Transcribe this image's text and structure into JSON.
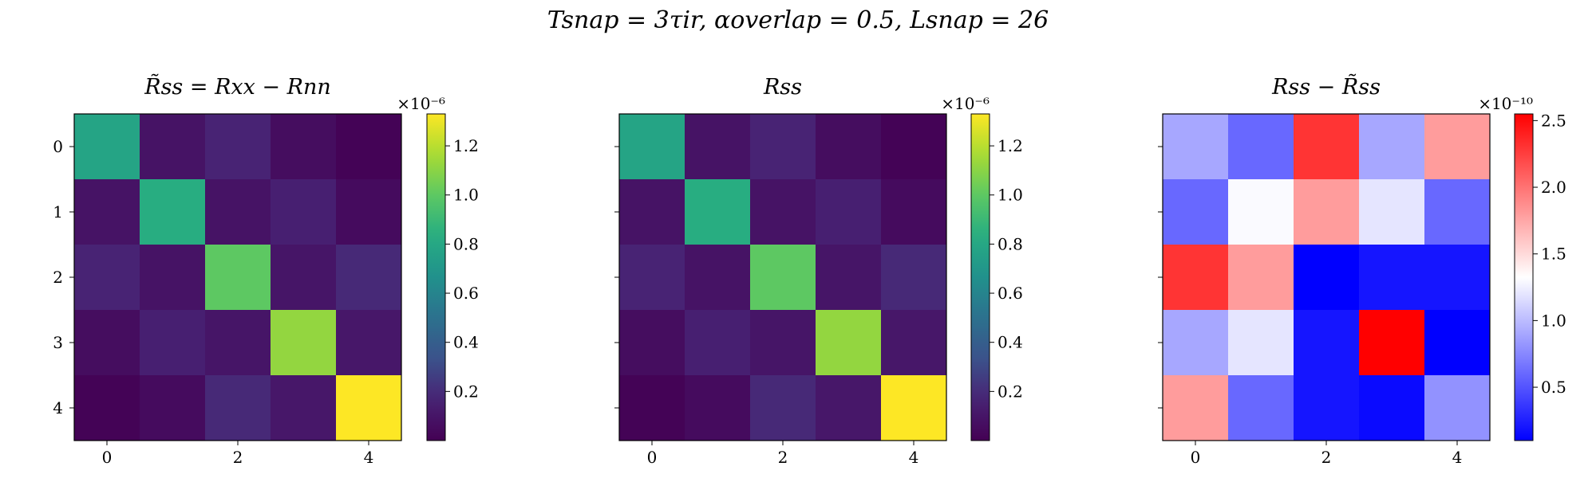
{
  "suptitle": "Tsnap = 3τir,   αoverlap = 0.5,   Lsnap = 26",
  "chart_data": [
    {
      "type": "heatmap",
      "title": "R̃ss = Rxx − Rnn",
      "rows": [
        "0",
        "1",
        "2",
        "3",
        "4"
      ],
      "cols": [
        "0",
        "1",
        "2",
        "3",
        "4"
      ],
      "xticks": [
        "0",
        "2",
        "4"
      ],
      "yticks": [
        "0",
        "1",
        "2",
        "3",
        "4"
      ],
      "colormap": "viridis",
      "multiplier": "×10⁻⁶",
      "vmin": 0.0,
      "vmax": 1.33,
      "colorbar_ticks": [
        "0.2",
        "0.4",
        "0.6",
        "0.8",
        "1.0",
        "1.2"
      ],
      "values": [
        [
          0.78,
          0.09,
          0.17,
          0.06,
          0.01
        ],
        [
          0.09,
          0.84,
          0.09,
          0.15,
          0.05
        ],
        [
          0.17,
          0.09,
          1.0,
          0.1,
          0.19
        ],
        [
          0.06,
          0.15,
          0.1,
          1.12,
          0.11
        ],
        [
          0.01,
          0.05,
          0.19,
          0.11,
          1.33
        ]
      ]
    },
    {
      "type": "heatmap",
      "title": "Rss",
      "rows": [
        "0",
        "1",
        "2",
        "3",
        "4"
      ],
      "cols": [
        "0",
        "1",
        "2",
        "3",
        "4"
      ],
      "xticks": [
        "0",
        "2",
        "4"
      ],
      "yticks": [],
      "colormap": "viridis",
      "multiplier": "×10⁻⁶",
      "vmin": 0.0,
      "vmax": 1.33,
      "colorbar_ticks": [
        "0.2",
        "0.4",
        "0.6",
        "0.8",
        "1.0",
        "1.2"
      ],
      "values": [
        [
          0.78,
          0.09,
          0.17,
          0.06,
          0.01
        ],
        [
          0.09,
          0.84,
          0.09,
          0.15,
          0.05
        ],
        [
          0.17,
          0.09,
          1.0,
          0.1,
          0.19
        ],
        [
          0.06,
          0.15,
          0.1,
          1.12,
          0.11
        ],
        [
          0.01,
          0.05,
          0.19,
          0.11,
          1.33
        ]
      ]
    },
    {
      "type": "heatmap",
      "title": "Rss − R̃ss",
      "rows": [
        "0",
        "1",
        "2",
        "3",
        "4"
      ],
      "cols": [
        "0",
        "1",
        "2",
        "3",
        "4"
      ],
      "xticks": [
        "0",
        "2",
        "4"
      ],
      "yticks": [],
      "colormap": "bwr",
      "multiplier": "×10⁻¹⁰",
      "vmin": 0.1,
      "vmax": 2.55,
      "colorbar_ticks": [
        "0.5",
        "1.0",
        "1.5",
        "2.0",
        "2.5"
      ],
      "values": [
        [
          0.9,
          0.6,
          2.3,
          0.9,
          1.8
        ],
        [
          0.6,
          1.3,
          1.8,
          1.2,
          0.6
        ],
        [
          2.3,
          1.8,
          0.1,
          0.2,
          0.2
        ],
        [
          0.9,
          1.2,
          0.2,
          2.55,
          0.1
        ],
        [
          1.8,
          0.6,
          0.2,
          0.15,
          0.8
        ]
      ]
    }
  ]
}
